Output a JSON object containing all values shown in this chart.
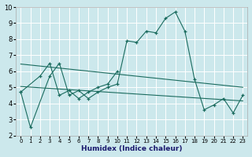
{
  "xlabel": "Humidex (Indice chaleur)",
  "bg_color": "#cce8ec",
  "grid_color": "#ffffff",
  "line_color": "#1a6b5e",
  "xlim": [
    -0.5,
    23.5
  ],
  "ylim": [
    2,
    10
  ],
  "xticks": [
    0,
    1,
    2,
    3,
    4,
    5,
    6,
    7,
    8,
    9,
    10,
    11,
    12,
    13,
    14,
    15,
    16,
    17,
    18,
    19,
    20,
    21,
    22,
    23
  ],
  "yticks": [
    2,
    3,
    4,
    5,
    6,
    7,
    8,
    9,
    10
  ],
  "curve1_x": [
    0,
    1,
    3,
    4,
    5,
    6,
    7,
    8,
    9,
    10,
    11,
    12,
    13,
    14,
    15,
    16,
    17,
    18,
    19,
    20,
    21,
    22,
    23
  ],
  "curve1_y": [
    4.7,
    2.5,
    5.7,
    6.5,
    4.5,
    4.8,
    4.3,
    4.7,
    5.0,
    5.2,
    7.9,
    7.8,
    8.5,
    8.4,
    9.3,
    9.7,
    8.5,
    5.5,
    3.6,
    3.9,
    4.3,
    3.4,
    4.5
  ],
  "curve2_x": [
    0,
    2,
    3,
    4,
    5,
    6,
    7,
    8,
    9,
    10
  ],
  "curve2_y": [
    4.7,
    5.7,
    6.5,
    4.5,
    4.8,
    4.3,
    4.7,
    5.0,
    5.2,
    6.0
  ],
  "trend1_x": [
    0,
    23
  ],
  "trend1_y": [
    6.45,
    5.0
  ],
  "trend2_x": [
    0,
    23
  ],
  "trend2_y": [
    5.05,
    4.15
  ]
}
